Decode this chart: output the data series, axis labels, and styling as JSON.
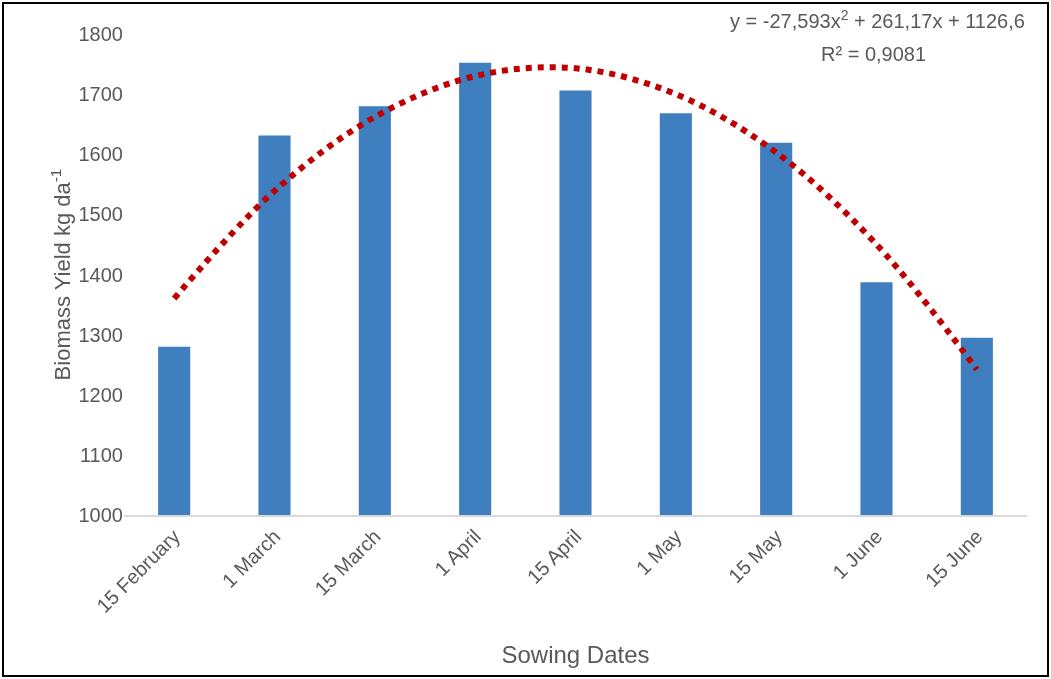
{
  "chart_data": {
    "type": "bar",
    "xlabel": "Sowing Dates",
    "ylabel": "Biomass Yield kg da$^{-1}$",
    "categories": [
      "15 February",
      "1 March",
      "15 March",
      "1 April",
      "15 April",
      "1 May",
      "15 May",
      "1 June",
      "15 June"
    ],
    "series": [
      {
        "color": "#3f7fbf",
        "values": [
          1280,
          1631,
          1680,
          1752,
          1706,
          1668,
          1619,
          1387,
          1295
        ]
      },
      {
        "type": "line",
        "color": "#c00000",
        "line_style": "dotted",
        "marker": "none",
        "values": [
          1360,
          1539,
          1662,
          1730,
          1743,
          1700,
          1603,
          1450,
          1242
        ]
      }
    ],
    "ylim": [
      1000,
      1800
    ],
    "yticks": [
      1000,
      1100,
      1200,
      1300,
      1400,
      1500,
      1600,
      1700,
      1800
    ],
    "grid": false,
    "legend": false,
    "annotations": [
      "y = -27,593x$^{2}$ + 261,17x + 1126,6",
      "R² = 0,9081"
    ]
  }
}
